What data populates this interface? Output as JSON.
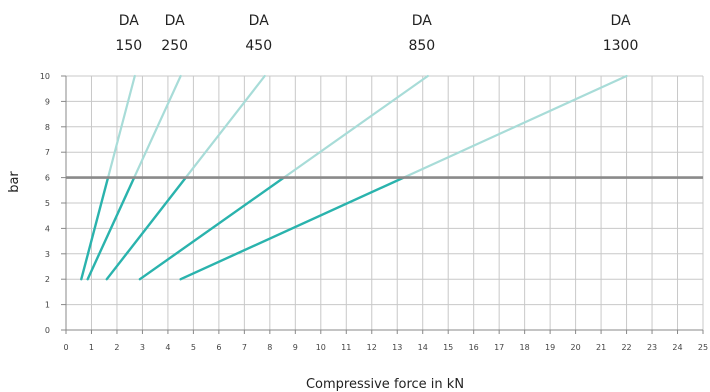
{
  "chart_data": {
    "type": "line",
    "xlabel": "Compressive force in kN",
    "ylabel": "bar",
    "xlim": [
      0,
      25
    ],
    "ylim": [
      0,
      10
    ],
    "x_ticks": [
      0,
      1,
      2,
      3,
      4,
      5,
      6,
      7,
      8,
      9,
      10,
      11,
      12,
      13,
      14,
      15,
      16,
      17,
      18,
      19,
      20,
      21,
      22,
      23,
      24,
      25
    ],
    "y_ticks": [
      0,
      1,
      2,
      3,
      4,
      5,
      6,
      7,
      8,
      9,
      10
    ],
    "grid": true,
    "reference_line": {
      "y": 6,
      "color": "#8a8a8a"
    },
    "colors": {
      "strong": "#2ab3ad",
      "light": "#a8dcd8",
      "grid": "#c8c8c8",
      "axis": "#888888"
    },
    "series": [
      {
        "name": "DA 150",
        "label_top": "DA",
        "label_bottom": "150",
        "points": [
          [
            0.6,
            2
          ],
          [
            2.7,
            10
          ]
        ]
      },
      {
        "name": "DA 250",
        "label_top": "DA",
        "label_bottom": "250",
        "points": [
          [
            0.85,
            2
          ],
          [
            4.5,
            10
          ]
        ]
      },
      {
        "name": "DA 450",
        "label_top": "DA",
        "label_bottom": "450",
        "points": [
          [
            1.6,
            2
          ],
          [
            7.8,
            10
          ]
        ]
      },
      {
        "name": "DA 850",
        "label_top": "DA",
        "label_bottom": "850",
        "points": [
          [
            2.9,
            2
          ],
          [
            14.2,
            10
          ]
        ]
      },
      {
        "name": "DA 1300",
        "label_top": "DA",
        "label_bottom": "1300",
        "points": [
          [
            4.5,
            2
          ],
          [
            22.0,
            10
          ]
        ]
      }
    ]
  }
}
